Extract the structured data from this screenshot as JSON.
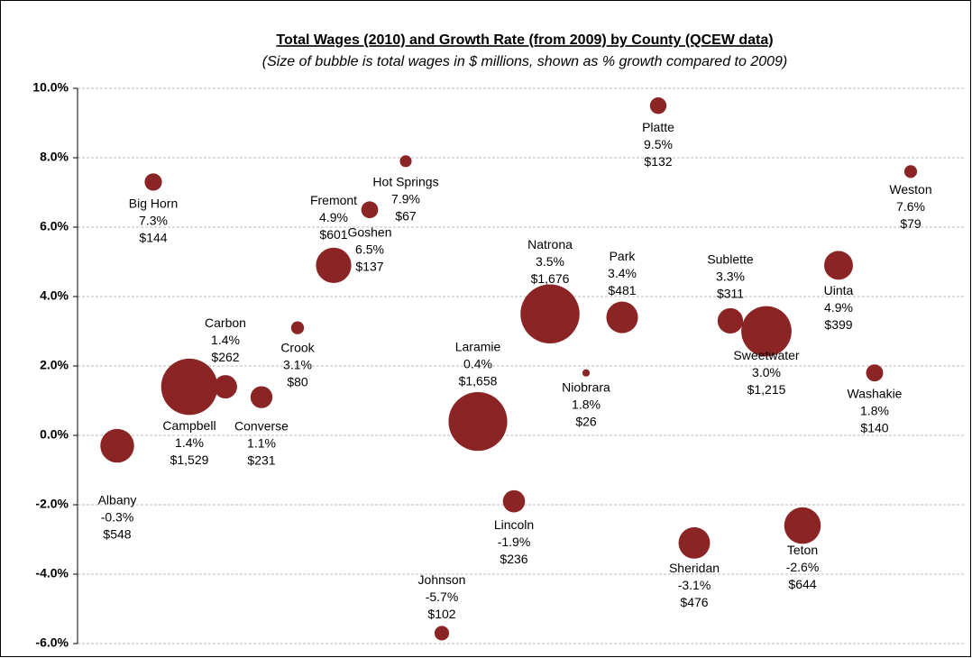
{
  "chart_data": {
    "type": "bubble",
    "title": "Total Wages (2010) and Growth Rate (from 2009) by County (QCEW data)",
    "subtitle": "(Size of bubble is total wages in $ millions, shown as % growth compared to 2009)",
    "categories": [
      "Albany",
      "Big Horn",
      "Campbell",
      "Carbon",
      "Converse",
      "Crook",
      "Fremont",
      "Goshen",
      "Hot Springs",
      "Johnson",
      "Laramie",
      "Lincoln",
      "Natrona",
      "Niobrara",
      "Park",
      "Platte",
      "Sheridan",
      "Sublette",
      "Sweetwater",
      "Teton",
      "Uinta",
      "Washakie",
      "Weston"
    ],
    "values": [
      -0.3,
      7.3,
      1.4,
      1.4,
      1.1,
      3.1,
      4.9,
      6.5,
      7.9,
      -5.7,
      0.4,
      -1.9,
      3.5,
      1.8,
      3.4,
      9.5,
      -3.1,
      3.3,
      3.0,
      -2.6,
      4.9,
      1.8,
      7.6
    ],
    "value_labels": [
      "-0.3%",
      "7.3%",
      "1.4%",
      "1.4%",
      "1.1%",
      "3.1%",
      "4.9%",
      "6.5%",
      "7.9%",
      "-5.7%",
      "0.4%",
      "-1.9%",
      "3.5%",
      "1.8%",
      "3.4%",
      "9.5%",
      "-3.1%",
      "3.3%",
      "3.0%",
      "-2.6%",
      "4.9%",
      "1.8%",
      "7.6%"
    ],
    "sizes": [
      548,
      144,
      1529,
      262,
      231,
      80,
      601,
      137,
      67,
      102,
      1658,
      236,
      1676,
      26,
      481,
      132,
      476,
      311,
      1215,
      644,
      399,
      140,
      79
    ],
    "size_labels": [
      "$548",
      "$144",
      "$1,529",
      "$262",
      "$231",
      "$80",
      "$601",
      "$137",
      "$67",
      "$102",
      "$1,658",
      "$236",
      "$1,676",
      "$26",
      "$481",
      "$132",
      "$476",
      "$311",
      "$1,215",
      "$644",
      "$399",
      "$140",
      "$79"
    ],
    "color": "#8b2424",
    "ylim": [
      -6,
      10
    ],
    "yticks": [
      {
        "value": -6,
        "label": "-6.0%"
      },
      {
        "value": -4,
        "label": "-4.0%"
      },
      {
        "value": -2,
        "label": "-2.0%"
      },
      {
        "value": 0,
        "label": "0.0%"
      },
      {
        "value": 2,
        "label": "2.0%"
      },
      {
        "value": 4,
        "label": "4.0%"
      },
      {
        "value": 6,
        "label": "6.0%"
      },
      {
        "value": 8,
        "label": "8.0%"
      },
      {
        "value": 10,
        "label": "10.0%"
      }
    ],
    "grid": true
  }
}
